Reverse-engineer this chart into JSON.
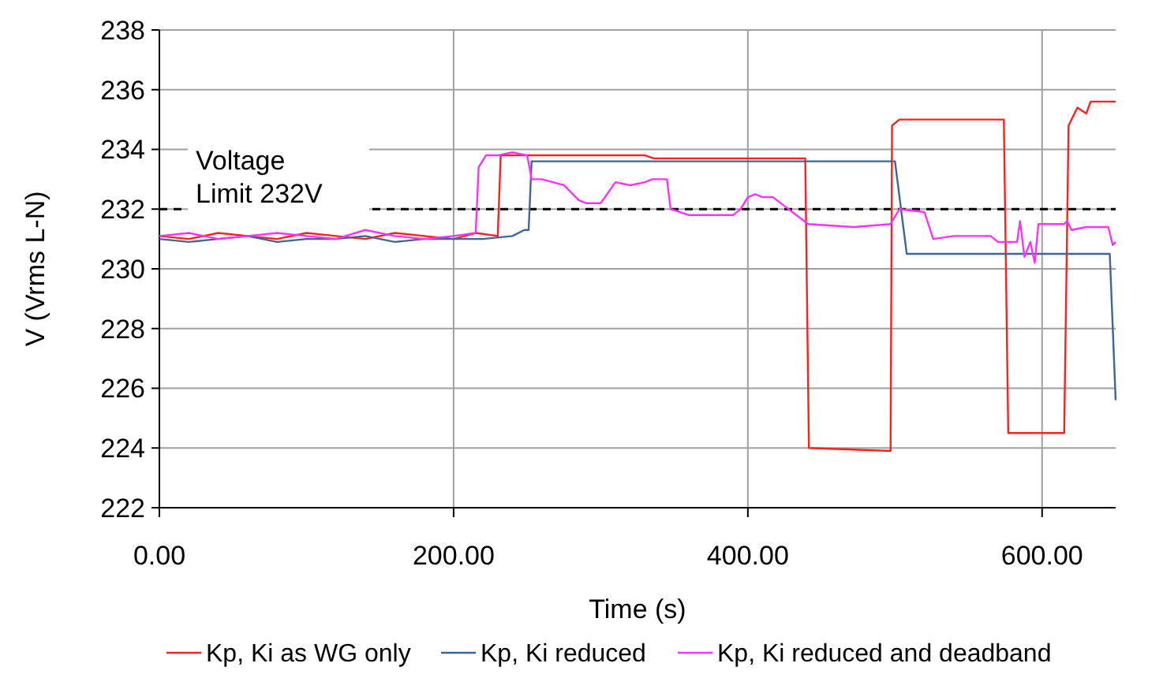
{
  "chart_data": {
    "type": "line",
    "xlabel": "Time (s)",
    "ylabel": "V (Vrms L-N)",
    "xlim": [
      0,
      650
    ],
    "ylim": [
      222,
      238
    ],
    "xticks": [
      {
        "value": 0,
        "label": "0.00"
      },
      {
        "value": 200,
        "label": "200.00"
      },
      {
        "value": 400,
        "label": "400.00"
      },
      {
        "value": 600,
        "label": "600.00"
      }
    ],
    "yticks": [
      222,
      224,
      226,
      228,
      230,
      232,
      234,
      236,
      238
    ],
    "grid": true,
    "legend": "bottom",
    "marker": "none",
    "line_style": "solid",
    "ref_lines": [
      {
        "axis": "y",
        "value": 232,
        "label": "Voltage Limit 232V",
        "color": "#000000",
        "line_style": "dashed"
      }
    ],
    "series": [
      {
        "name": "Kp, Ki as WG only",
        "color": "#ff2020",
        "x": [
          0,
          20,
          40,
          60,
          80,
          100,
          120,
          140,
          160,
          180,
          200,
          215,
          230,
          232,
          234,
          330,
          336,
          439,
          441.5,
          497,
          498,
          503,
          574,
          577,
          615,
          618,
          624,
          630,
          633,
          650
        ],
        "values": [
          231.1,
          231.0,
          231.2,
          231.1,
          231.0,
          231.2,
          231.1,
          231.0,
          231.2,
          231.1,
          231.0,
          231.2,
          231.1,
          233.8,
          233.8,
          233.8,
          233.7,
          233.7,
          224.0,
          223.9,
          234.8,
          235.0,
          235.0,
          224.5,
          224.5,
          234.8,
          235.4,
          235.2,
          235.6,
          235.6
        ]
      },
      {
        "name": "Kp, Ki reduced",
        "color": "#3f6695",
        "x": [
          0,
          20,
          40,
          60,
          80,
          100,
          120,
          140,
          160,
          180,
          200,
          220,
          240,
          248,
          251,
          253,
          500,
          508,
          646,
          650
        ],
        "values": [
          231.0,
          230.9,
          231.0,
          231.1,
          230.9,
          231.0,
          231.0,
          231.1,
          230.9,
          231.0,
          231.0,
          231.0,
          231.1,
          231.3,
          231.3,
          233.6,
          233.6,
          230.5,
          230.5,
          225.6
        ]
      },
      {
        "name": "Kp, Ki reduced and deadband",
        "color": "#ff33ff",
        "x": [
          0,
          20,
          40,
          60,
          80,
          100,
          120,
          140,
          160,
          180,
          200,
          215,
          217,
          222,
          230,
          240,
          250,
          253,
          260,
          275,
          285,
          290,
          300,
          310,
          320,
          330,
          335,
          345,
          347.5,
          360,
          390,
          395,
          400,
          405,
          410,
          417,
          441,
          472,
          497,
          503,
          520,
          526,
          540,
          565,
          570,
          583,
          585,
          588,
          592,
          595,
          597.5,
          615,
          617,
          620,
          630,
          645,
          648,
          650
        ],
        "values": [
          231.1,
          231.2,
          231.0,
          231.1,
          231.2,
          231.1,
          231.0,
          231.3,
          231.1,
          231.0,
          231.1,
          231.2,
          233.4,
          233.8,
          233.8,
          233.9,
          233.8,
          233.0,
          233.0,
          232.8,
          232.3,
          232.2,
          232.2,
          232.9,
          232.8,
          232.9,
          233.0,
          233.0,
          232.0,
          231.8,
          231.8,
          232.0,
          232.4,
          232.5,
          232.4,
          232.4,
          231.5,
          231.4,
          231.5,
          232.0,
          231.9,
          231.0,
          231.1,
          231.1,
          230.9,
          230.9,
          231.6,
          230.4,
          230.9,
          230.2,
          231.5,
          231.5,
          231.6,
          231.3,
          231.4,
          231.4,
          230.8,
          230.9
        ]
      }
    ]
  }
}
